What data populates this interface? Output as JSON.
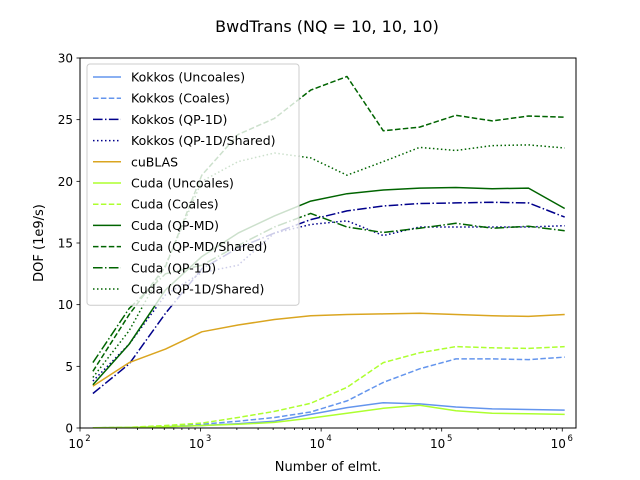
{
  "chart_data": {
    "type": "line",
    "title": "BwdTrans (NQ = 10, 10, 10)",
    "xlabel": "Number of elmt.",
    "ylabel": "DOF (1e9/s)",
    "xscale": "log",
    "xlim": [
      100,
      1300000
    ],
    "ylim": [
      0,
      30
    ],
    "grid": false,
    "legend_position": "upper-left",
    "xticks": [
      {
        "value": 100,
        "base": "10",
        "exp": "2"
      },
      {
        "value": 1000,
        "base": "10",
        "exp": "3"
      },
      {
        "value": 10000,
        "base": "10",
        "exp": "4"
      },
      {
        "value": 100000,
        "base": "10",
        "exp": "5"
      },
      {
        "value": 1000000,
        "base": "10",
        "exp": "6"
      }
    ],
    "yticks": [
      0,
      5,
      10,
      15,
      20,
      25,
      30
    ],
    "x": [
      128,
      256,
      512,
      1024,
      2048,
      4096,
      8192,
      16384,
      32768,
      65536,
      131072,
      262144,
      524288,
      1048576
    ],
    "series": [
      {
        "name": "Kokkos (Uncoales)",
        "color": "#6495ed",
        "dash": "solid",
        "values": [
          0.02,
          0.04,
          0.1,
          0.2,
          0.35,
          0.55,
          1.1,
          1.65,
          2.05,
          1.95,
          1.7,
          1.55,
          1.5,
          1.45
        ]
      },
      {
        "name": "Kokkos (Coales)",
        "color": "#6495ed",
        "dash": "dashed",
        "values": [
          0.02,
          0.05,
          0.15,
          0.3,
          0.55,
          0.85,
          1.3,
          2.2,
          3.7,
          4.8,
          5.6,
          5.6,
          5.55,
          5.75
        ]
      },
      {
        "name": "Kokkos (QP-1D)",
        "color": "#00008b",
        "dash": "dashdot",
        "values": [
          2.8,
          5.2,
          9.3,
          12.9,
          14.6,
          15.8,
          16.9,
          17.6,
          18.0,
          18.2,
          18.25,
          18.3,
          18.25,
          17.1
        ]
      },
      {
        "name": "Kokkos (QP-1D/Shared)",
        "color": "#00008b",
        "dash": "dotted",
        "values": [
          3.8,
          6.8,
          10.8,
          12.6,
          13.2,
          15.8,
          16.5,
          16.8,
          15.6,
          16.3,
          16.3,
          16.3,
          16.3,
          16.4
        ]
      },
      {
        "name": "cuBLAS",
        "color": "#daa520",
        "dash": "solid",
        "values": [
          3.4,
          5.3,
          6.4,
          7.8,
          8.35,
          8.8,
          9.1,
          9.2,
          9.25,
          9.3,
          9.2,
          9.1,
          9.05,
          9.2
        ]
      },
      {
        "name": "Cuda (Uncoales)",
        "color": "#adff2f",
        "dash": "solid",
        "values": [
          0.02,
          0.04,
          0.1,
          0.2,
          0.3,
          0.45,
          0.8,
          1.2,
          1.6,
          1.85,
          1.4,
          1.2,
          1.15,
          1.1
        ]
      },
      {
        "name": "Cuda (Coales)",
        "color": "#adff2f",
        "dash": "dashed",
        "values": [
          0.02,
          0.06,
          0.2,
          0.4,
          0.85,
          1.35,
          2.0,
          3.3,
          5.3,
          6.1,
          6.6,
          6.5,
          6.45,
          6.6
        ]
      },
      {
        "name": "Cuda (QP-MD)",
        "color": "#006400",
        "dash": "solid",
        "values": [
          3.5,
          6.8,
          11.2,
          13.9,
          15.8,
          17.2,
          18.4,
          19.0,
          19.3,
          19.45,
          19.5,
          19.4,
          19.45,
          17.8
        ]
      },
      {
        "name": "Cuda (QP-MD/Shared)",
        "color": "#006400",
        "dash": "dashed",
        "values": [
          4.6,
          9.2,
          13.1,
          20.5,
          23.8,
          25.1,
          27.4,
          28.5,
          24.1,
          24.4,
          25.35,
          24.9,
          25.3,
          25.2
        ]
      },
      {
        "name": "Cuda (QP-1D)",
        "color": "#006400",
        "dash": "dashdot",
        "values": [
          5.3,
          9.7,
          12.5,
          13.2,
          14.8,
          16.3,
          17.4,
          16.3,
          15.85,
          16.2,
          16.6,
          16.2,
          16.35,
          16.0
        ]
      },
      {
        "name": "Cuda (QP-1D/Shared)",
        "color": "#006400",
        "dash": "dotted",
        "values": [
          4.1,
          7.9,
          13.2,
          20.0,
          21.6,
          22.3,
          21.9,
          20.5,
          21.6,
          22.75,
          22.5,
          22.9,
          22.95,
          22.7
        ]
      }
    ]
  }
}
